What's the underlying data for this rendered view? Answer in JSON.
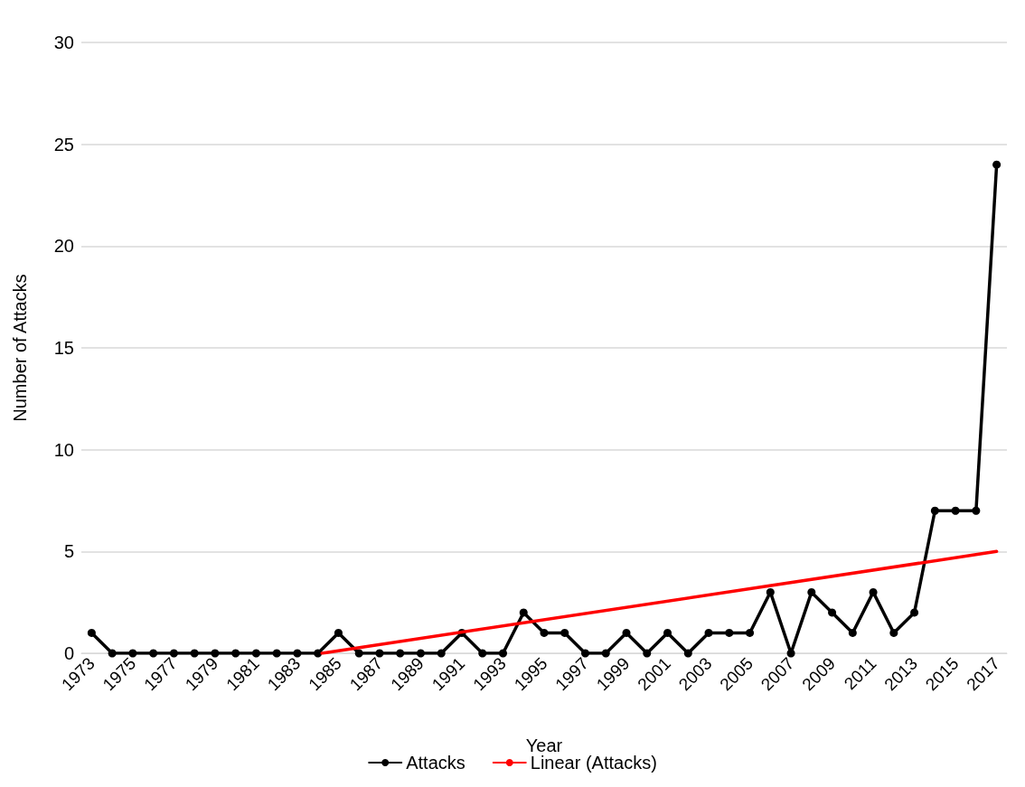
{
  "chart_data": {
    "type": "line",
    "xlabel": "Year",
    "ylabel": "Number of Attacks",
    "x": [
      1973,
      1974,
      1975,
      1976,
      1977,
      1978,
      1979,
      1980,
      1981,
      1982,
      1983,
      1984,
      1985,
      1986,
      1987,
      1988,
      1989,
      1990,
      1991,
      1992,
      1993,
      1994,
      1995,
      1996,
      1997,
      1998,
      1999,
      2000,
      2001,
      2002,
      2003,
      2004,
      2005,
      2006,
      2007,
      2008,
      2009,
      2010,
      2011,
      2012,
      2013,
      2014,
      2015,
      2016,
      2017
    ],
    "series": [
      {
        "name": "Attacks",
        "color": "#000000",
        "marker": "circle",
        "values": [
          1,
          0,
          0,
          0,
          0,
          0,
          0,
          0,
          0,
          0,
          0,
          0,
          1,
          0,
          0,
          0,
          0,
          0,
          1,
          0,
          0,
          2,
          1,
          1,
          0,
          0,
          1,
          0,
          1,
          0,
          1,
          1,
          1,
          3,
          0,
          3,
          2,
          1,
          3,
          1,
          2,
          7,
          7,
          7,
          24
        ]
      },
      {
        "name": "Linear (Attacks)",
        "color": "#ff0000",
        "marker": "none",
        "x": [
          1984.2,
          2017
        ],
        "values": [
          0,
          5
        ]
      }
    ],
    "xlim": [
      1972.5,
      2017.5
    ],
    "xticks": [
      1973,
      1975,
      1977,
      1979,
      1981,
      1983,
      1985,
      1987,
      1989,
      1991,
      1993,
      1995,
      1997,
      1999,
      2001,
      2003,
      2005,
      2007,
      2009,
      2011,
      2013,
      2015,
      2017
    ],
    "ylim": [
      0,
      30
    ],
    "yticks": [
      0,
      5,
      10,
      15,
      20,
      25,
      30
    ],
    "grid": "y",
    "legend": "bottom",
    "line_style": "solid"
  }
}
